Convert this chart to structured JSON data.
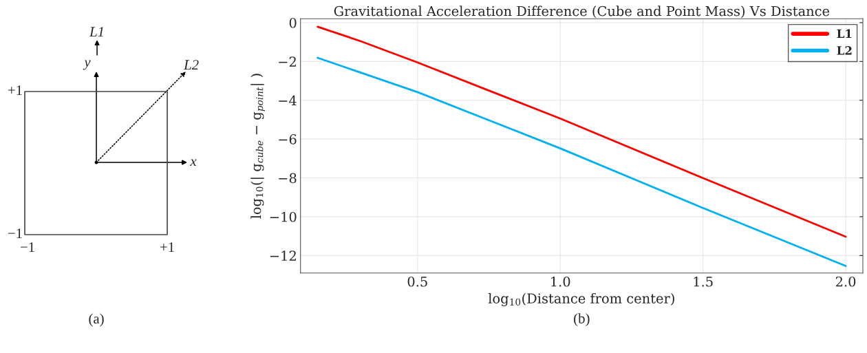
{
  "chart_data": [
    {
      "type": "other",
      "annotations": [
        "L1",
        "y",
        "L2",
        "x",
        "+1",
        "−1",
        "−1",
        "+1",
        "(a)"
      ]
    },
    {
      "type": "line",
      "title": "Gravitational Acceleration Difference (Cube and Point Mass) Vs Distance",
      "xlabel": "log$_{10}$(Distance from center)",
      "ylabel": "log$_{10}$(| g$_{cube}$ − g$_{point}$| )",
      "x": [
        0.15,
        0.3,
        0.5,
        0.75,
        1.0,
        1.5,
        2.0
      ],
      "series": [
        {
          "name": "L1",
          "color": "#ff0000",
          "values": [
            -0.21,
            -0.95,
            -2.05,
            -3.5,
            -4.94,
            -8.01,
            -11.03
          ]
        },
        {
          "name": "L2",
          "color": "#00b0f0",
          "values": [
            -1.81,
            -2.57,
            -3.58,
            -5.03,
            -6.48,
            -9.55,
            -12.54
          ]
        }
      ],
      "xlim": [
        0.09,
        2.06
      ],
      "ylim": [
        -12.9,
        0.2
      ],
      "xticks": [
        0.5,
        {
          "value": 1.0,
          "label": "1.0"
        },
        1.5,
        {
          "value": 2.0,
          "label": "2.0"
        }
      ],
      "yticks": [
        0,
        -2,
        -4,
        -6,
        -8,
        -10,
        -12
      ],
      "grid": true,
      "legend": "top right",
      "line_style": "solid",
      "marker": "none",
      "annotations": [
        "(b)"
      ]
    }
  ]
}
